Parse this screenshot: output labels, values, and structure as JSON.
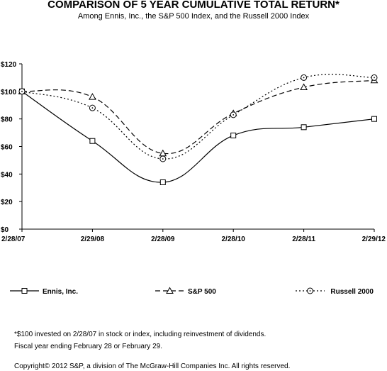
{
  "chart_data": {
    "type": "line",
    "title": "COMPARISON OF 5 YEAR CUMULATIVE TOTAL RETURN*",
    "subtitle": "Among Ennis, Inc., the S&P 500 Index, and the Russell 2000 Index",
    "categories": [
      "2/28/07",
      "2/29/08",
      "2/28/09",
      "2/28/10",
      "2/28/11",
      "2/29/12"
    ],
    "ylim": [
      0,
      120
    ],
    "y_ticks": [
      0,
      20,
      40,
      60,
      80,
      100,
      120
    ],
    "y_tick_labels": [
      "$0",
      "$20",
      "$40",
      "$60",
      "$80",
      "$100",
      "$120"
    ],
    "grid": false,
    "legend_position": "bottom",
    "series": [
      {
        "name": "Ennis, Inc.",
        "values": [
          100,
          64,
          34,
          68,
          74,
          80
        ],
        "marker": "square",
        "dash": "solid",
        "color": "#000000"
      },
      {
        "name": "S&P 500",
        "values": [
          100,
          96,
          55,
          84,
          103,
          108
        ],
        "marker": "triangle",
        "dash": "dashed",
        "color": "#000000"
      },
      {
        "name": "Russell 2000",
        "values": [
          100,
          88,
          51,
          83,
          110,
          110
        ],
        "marker": "circle",
        "dash": "dotted",
        "color": "#000000"
      }
    ]
  },
  "footnotes": [
    "*$100 invested on 2/28/07 in stock or index, including reinvestment of dividends.",
    "Fiscal year ending February 28 or February 29."
  ],
  "copyright": "Copyright© 2012 S&P, a division of The McGraw-Hill Companies Inc. All rights reserved."
}
